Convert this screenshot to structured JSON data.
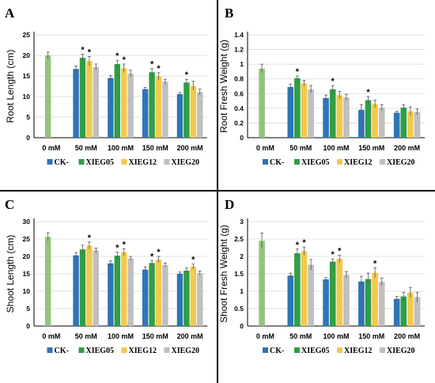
{
  "colors": {
    "CK-": "#2e75b6",
    "XIEG05": "#2f9e44",
    "XIEG12": "#f2c94c",
    "XIEG20": "#bfbfbf",
    "ctrl": "#93c47d",
    "axis": "#000000",
    "grid": "#d9d9d9"
  },
  "chart_data": [
    {
      "type": "bar",
      "panel": "A",
      "ylabel": "Root Length (cm)",
      "ylim": [
        0,
        25
      ],
      "yticks": [
        0,
        5,
        10,
        15,
        20,
        25
      ],
      "categories": [
        "0 mM",
        "50 mM",
        "100 mM",
        "150 mM",
        "200 mM"
      ],
      "series": [
        {
          "name": "CK-",
          "values": [
            null,
            16.7,
            14.5,
            11.8,
            10.6
          ],
          "err": [
            null,
            0.7,
            0.6,
            0.4,
            0.4
          ]
        },
        {
          "name": "XIEG05",
          "values": [
            20.0,
            19.4,
            17.9,
            15.9,
            13.4
          ],
          "err": [
            0.8,
            0.9,
            0.9,
            0.9,
            0.8
          ]
        },
        {
          "name": "XIEG12",
          "values": [
            null,
            18.6,
            16.9,
            14.9,
            12.6
          ],
          "err": [
            null,
            1.1,
            1.0,
            0.9,
            1.1
          ]
        },
        {
          "name": "XIEG20",
          "values": [
            null,
            17.2,
            15.6,
            13.6,
            11.1
          ],
          "err": [
            null,
            0.7,
            0.8,
            0.6,
            0.7
          ]
        }
      ],
      "stars": [
        [
          1,
          1
        ],
        [
          1,
          2
        ],
        [
          2,
          1
        ],
        [
          2,
          2
        ],
        [
          3,
          1
        ],
        [
          3,
          2
        ],
        [
          4,
          1
        ]
      ]
    },
    {
      "type": "bar",
      "panel": "B",
      "ylabel": "Root Fresh Weight (g)",
      "ylim": [
        0,
        1.4
      ],
      "yticks": [
        0,
        0.2,
        0.4,
        0.6,
        0.8,
        1,
        1.2,
        1.4
      ],
      "categories": [
        "0 mM",
        "50 mM",
        "100 mM",
        "150 mM",
        "200 mM"
      ],
      "series": [
        {
          "name": "CK-",
          "values": [
            null,
            0.69,
            0.54,
            0.38,
            0.34
          ],
          "err": [
            null,
            0.04,
            0.04,
            0.07,
            0.02
          ]
        },
        {
          "name": "XIEG05",
          "values": [
            0.94,
            0.81,
            0.66,
            0.51,
            0.41
          ],
          "err": [
            0.06,
            0.03,
            0.05,
            0.05,
            0.04
          ]
        },
        {
          "name": "XIEG12",
          "values": [
            null,
            0.74,
            0.58,
            0.46,
            0.36
          ],
          "err": [
            null,
            0.04,
            0.05,
            0.05,
            0.06
          ]
        },
        {
          "name": "XIEG20",
          "values": [
            null,
            0.66,
            0.55,
            0.41,
            0.35
          ],
          "err": [
            null,
            0.05,
            0.04,
            0.04,
            0.04
          ]
        }
      ],
      "stars": [
        [
          1,
          1
        ],
        [
          2,
          1
        ],
        [
          3,
          1
        ]
      ]
    },
    {
      "type": "bar",
      "panel": "C",
      "ylabel": "Shoot Length (cm)",
      "ylim": [
        0,
        30
      ],
      "yticks": [
        0,
        5,
        10,
        15,
        20,
        25,
        30
      ],
      "categories": [
        "0 mM",
        "50 mM",
        "100 mM",
        "150 mM",
        "200 mM"
      ],
      "series": [
        {
          "name": "CK-",
          "values": [
            null,
            20.3,
            18.0,
            16.2,
            15.0
          ],
          "err": [
            null,
            0.8,
            0.7,
            0.8,
            0.5
          ]
        },
        {
          "name": "XIEG05",
          "values": [
            25.6,
            22.0,
            20.2,
            18.1,
            15.9
          ],
          "err": [
            1.2,
            1.2,
            1.0,
            0.7,
            0.8
          ]
        },
        {
          "name": "XIEG12",
          "values": [
            null,
            23.1,
            21.2,
            19.1,
            17.1
          ],
          "err": [
            null,
            1.0,
            1.0,
            0.9,
            0.7
          ]
        },
        {
          "name": "XIEG20",
          "values": [
            null,
            21.7,
            19.4,
            17.5,
            15.2
          ],
          "err": [
            null,
            0.7,
            0.6,
            0.6,
            0.6
          ]
        }
      ],
      "stars": [
        [
          1,
          2
        ],
        [
          2,
          1
        ],
        [
          2,
          2
        ],
        [
          3,
          1
        ],
        [
          3,
          2
        ],
        [
          4,
          2
        ]
      ]
    },
    {
      "type": "bar",
      "panel": "D",
      "ylabel": "Shoot Fresh Weight (g)",
      "ylim": [
        0,
        3
      ],
      "yticks": [
        0,
        0.5,
        1,
        1.5,
        2,
        2.5,
        3
      ],
      "categories": [
        "0 mM",
        "50 mM",
        "100 mM",
        "150 mM",
        "200 mM"
      ],
      "series": [
        {
          "name": "CK-",
          "values": [
            null,
            1.45,
            1.34,
            1.28,
            0.78
          ],
          "err": [
            null,
            0.07,
            0.05,
            0.15,
            0.07
          ]
        },
        {
          "name": "XIEG05",
          "values": [
            2.45,
            2.09,
            1.85,
            1.35,
            0.85
          ],
          "err": [
            0.22,
            0.12,
            0.08,
            0.17,
            0.12
          ]
        },
        {
          "name": "XIEG12",
          "values": [
            null,
            2.15,
            1.93,
            1.53,
            0.96
          ],
          "err": [
            null,
            0.12,
            0.1,
            0.14,
            0.15
          ]
        },
        {
          "name": "XIEG20",
          "values": [
            null,
            1.76,
            1.47,
            1.27,
            0.83
          ],
          "err": [
            null,
            0.15,
            0.09,
            0.11,
            0.14
          ]
        }
      ],
      "stars": [
        [
          1,
          1
        ],
        [
          1,
          2
        ],
        [
          2,
          1
        ],
        [
          2,
          2
        ],
        [
          3,
          2
        ]
      ]
    }
  ]
}
